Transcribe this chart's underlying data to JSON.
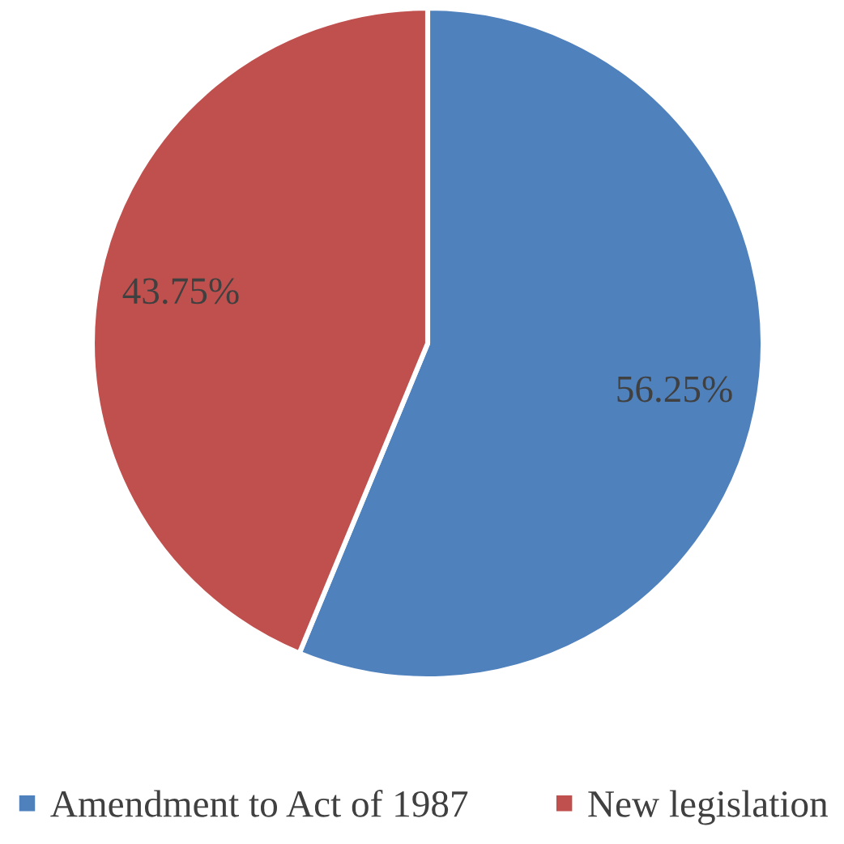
{
  "chart_data": {
    "type": "pie",
    "categories": [
      "Amendment to Act of 1987",
      "New legislation"
    ],
    "values": [
      56.25,
      43.75
    ],
    "colors": [
      "#4f81bd",
      "#c0504d"
    ],
    "value_labels": [
      "56.25%",
      "43.75%"
    ],
    "legend": "bottom"
  }
}
